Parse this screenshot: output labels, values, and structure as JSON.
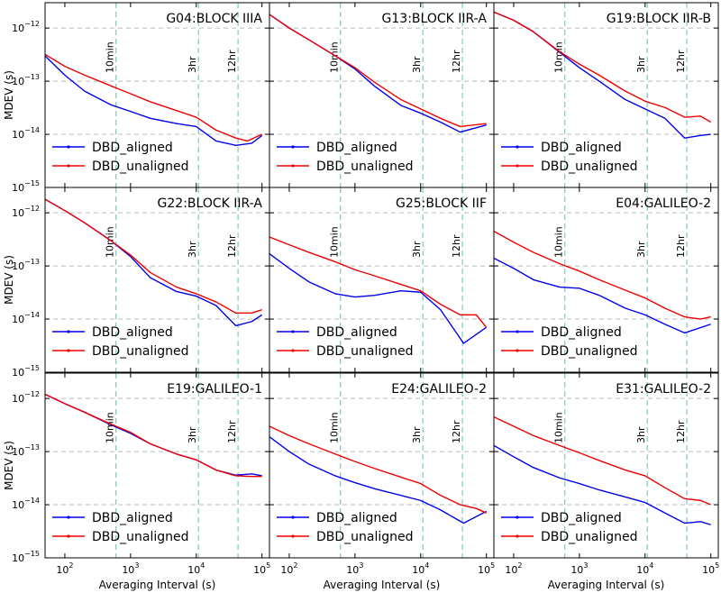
{
  "chart_data": {
    "type": "line",
    "xlabel": "Averaging Interval (s)",
    "ylabel": "MDEV (s)",
    "xscale": "log",
    "yscale": "log",
    "xlim": [
      50,
      130000
    ],
    "ylim": [
      1e-15,
      3e-12
    ],
    "x_ticks": [
      {
        "value": 100,
        "base": "10",
        "exp": "2"
      },
      {
        "value": 1000,
        "base": "10",
        "exp": "3"
      },
      {
        "value": 10000,
        "base": "10",
        "exp": "4"
      },
      {
        "value": 100000,
        "base": "10",
        "exp": "5"
      }
    ],
    "y_ticks": [
      {
        "value": 1e-15,
        "base": "10",
        "exp": "−15"
      },
      {
        "value": 1e-14,
        "base": "10",
        "exp": "−14"
      },
      {
        "value": 1e-13,
        "base": "10",
        "exp": "−13"
      },
      {
        "value": 1e-12,
        "base": "10",
        "exp": "−12"
      }
    ],
    "vlines": [
      {
        "x": 600,
        "label": "10min"
      },
      {
        "x": 10800,
        "label": "3hr"
      },
      {
        "x": 43200,
        "label": "12hr"
      }
    ],
    "grid": "horizontal dashed at decades",
    "legend_placement": "lower-left",
    "colors": {
      "aligned": "#0000ee",
      "unaligned": "#ee0000",
      "vline": "#7fc8c0",
      "grid": "#bbbbbb"
    },
    "panels": [
      {
        "title": "G04:BLOCK IIIA",
        "series": [
          {
            "name": "DBD_aligned",
            "color": "#0000ee",
            "x": [
              50,
              100,
              200,
              500,
              1000,
              2000,
              5000,
              10000,
              20000,
              40000,
              70000,
              100000
            ],
            "y": [
              3e-13,
              1.3e-13,
              6.5e-14,
              3.6e-14,
              2.7e-14,
              2e-14,
              1.6e-14,
              1.4e-14,
              7.5e-15,
              6.2e-15,
              6.8e-15,
              9.5e-15
            ]
          },
          {
            "name": "DBD_unaligned",
            "color": "#ee0000",
            "x": [
              50,
              100,
              200,
              500,
              1000,
              2000,
              5000,
              10000,
              20000,
              40000,
              60000,
              100000
            ],
            "y": [
              3.2e-13,
              1.9e-13,
              1.3e-13,
              8.2e-14,
              5.8e-14,
              4.1e-14,
              2.8e-14,
              2.1e-14,
              1.2e-14,
              8.5e-15,
              7.5e-15,
              1e-14
            ]
          }
        ]
      },
      {
        "title": "G13:BLOCK IIR-A",
        "series": [
          {
            "name": "DBD_aligned",
            "color": "#0000ee",
            "x": [
              50,
              100,
              200,
              500,
              1000,
              2000,
              5000,
              10000,
              20000,
              40000,
              100000
            ],
            "y": [
              1.8e-12,
              1e-12,
              6e-13,
              3e-13,
              1.7e-13,
              8e-14,
              3.5e-14,
              2.5e-14,
              1.7e-14,
              1.1e-14,
              1.5e-14
            ]
          },
          {
            "name": "DBD_unaligned",
            "color": "#ee0000",
            "x": [
              50,
              100,
              200,
              500,
              1000,
              2000,
              5000,
              10000,
              20000,
              40000,
              100000
            ],
            "y": [
              1.8e-12,
              1e-12,
              6e-13,
              3e-13,
              1.8e-13,
              9.5e-14,
              4.5e-14,
              3e-14,
              2e-14,
              1.4e-14,
              1.6e-14
            ]
          }
        ]
      },
      {
        "title": "G19:BLOCK IIR-B",
        "series": [
          {
            "name": "DBD_aligned",
            "color": "#0000ee",
            "x": [
              50,
              100,
              200,
              500,
              1000,
              2000,
              5000,
              10000,
              20000,
              40000,
              70000,
              100000
            ],
            "y": [
              2e-12,
              1.4e-12,
              8.5e-13,
              3.5e-13,
              1.8e-13,
              1e-13,
              4.5e-14,
              3e-14,
              2e-14,
              8.5e-15,
              9.5e-15,
              1e-14
            ]
          },
          {
            "name": "DBD_unaligned",
            "color": "#ee0000",
            "x": [
              50,
              100,
              200,
              500,
              1000,
              2000,
              5000,
              10000,
              20000,
              40000,
              70000,
              100000
            ],
            "y": [
              2e-12,
              1.4e-12,
              8.5e-13,
              3.6e-13,
              2.1e-13,
              1.3e-13,
              6.5e-14,
              4.2e-14,
              3.2e-14,
              2.1e-14,
              2.2e-14,
              1.7e-14
            ]
          }
        ]
      },
      {
        "title": "G22:BLOCK IIR-A",
        "series": [
          {
            "name": "DBD_aligned",
            "color": "#0000ee",
            "x": [
              50,
              100,
              200,
              500,
              1000,
              2000,
              5000,
              10000,
              20000,
              40000,
              70000,
              100000
            ],
            "y": [
              1.8e-12,
              1.1e-12,
              6.5e-13,
              3e-13,
              1.5e-13,
              6e-14,
              3.3e-14,
              2.7e-14,
              1.8e-14,
              7.5e-15,
              9e-15,
              1.2e-14
            ]
          },
          {
            "name": "DBD_unaligned",
            "color": "#ee0000",
            "x": [
              50,
              100,
              200,
              500,
              1000,
              2000,
              5000,
              10000,
              20000,
              40000,
              70000,
              100000
            ],
            "y": [
              1.8e-12,
              1.1e-12,
              6.5e-13,
              3e-13,
              1.6e-13,
              7.5e-14,
              4e-14,
              3e-14,
              2.1e-14,
              1.3e-14,
              1.3e-14,
              1.5e-14
            ]
          }
        ]
      },
      {
        "title": "G25:BLOCK IIF",
        "series": [
          {
            "name": "DBD_aligned",
            "color": "#0000ee",
            "x": [
              50,
              100,
              200,
              500,
              1000,
              2000,
              5000,
              10000,
              20000,
              45000,
              100000
            ],
            "y": [
              1.7e-13,
              9e-14,
              5e-14,
              3e-14,
              2.6e-14,
              2.8e-14,
              3.4e-14,
              3.2e-14,
              1.5e-14,
              3.5e-15,
              7e-15
            ]
          },
          {
            "name": "DBD_unaligned",
            "color": "#ee0000",
            "x": [
              50,
              100,
              200,
              500,
              1000,
              2000,
              5000,
              10000,
              20000,
              40000,
              70000,
              100000
            ],
            "y": [
              3.5e-13,
              2.5e-13,
              1.8e-13,
              1.2e-13,
              8.5e-14,
              6.5e-14,
              4.5e-14,
              3.4e-14,
              1.9e-14,
              1.2e-14,
              1.2e-14,
              7e-15
            ]
          }
        ]
      },
      {
        "title": "E04:GALILEO-2",
        "series": [
          {
            "name": "DBD_aligned",
            "color": "#0000ee",
            "x": [
              50,
              100,
              200,
              500,
              1000,
              2000,
              5000,
              10000,
              20000,
              40000,
              100000
            ],
            "y": [
              1.4e-13,
              9e-14,
              5.5e-14,
              4e-14,
              3.8e-14,
              2.8e-14,
              1.6e-14,
              1.2e-14,
              8e-15,
              5.5e-15,
              8e-15
            ]
          },
          {
            "name": "DBD_unaligned",
            "color": "#ee0000",
            "x": [
              50,
              100,
              200,
              500,
              1000,
              2000,
              5000,
              10000,
              20000,
              40000,
              70000,
              100000
            ],
            "y": [
              4.5e-13,
              2.8e-13,
              1.8e-13,
              1.1e-13,
              8e-14,
              5.5e-14,
              3.5e-14,
              2.5e-14,
              1.6e-14,
              1.1e-14,
              1e-14,
              1.1e-14
            ]
          }
        ]
      },
      {
        "title": "E19:GALILEO-1",
        "series": [
          {
            "name": "DBD_aligned",
            "color": "#0000ee",
            "x": [
              50,
              100,
              200,
              500,
              1000,
              2000,
              5000,
              10000,
              20000,
              40000,
              70000,
              100000
            ],
            "y": [
              1.2e-12,
              8e-13,
              5.5e-13,
              3.2e-13,
              2.2e-13,
              1.4e-13,
              9e-14,
              7e-14,
              4.5e-14,
              3.6e-14,
              3.8e-14,
              3.5e-14
            ]
          },
          {
            "name": "DBD_unaligned",
            "color": "#ee0000",
            "x": [
              50,
              100,
              200,
              500,
              1000,
              2000,
              5000,
              10000,
              20000,
              40000,
              70000,
              100000
            ],
            "y": [
              1.2e-12,
              8e-13,
              5.5e-13,
              3.3e-13,
              2.3e-13,
              1.4e-13,
              9e-14,
              7e-14,
              4.5e-14,
              3.5e-14,
              3.4e-14,
              3.4e-14
            ]
          }
        ]
      },
      {
        "title": "E24:GALILEO-2",
        "series": [
          {
            "name": "DBD_aligned",
            "color": "#0000ee",
            "x": [
              50,
              100,
              200,
              500,
              1000,
              2000,
              5000,
              10000,
              20000,
              45000,
              100000
            ],
            "y": [
              1.9e-13,
              1e-13,
              5.8e-14,
              3.5e-14,
              2.6e-14,
              2e-14,
              1.5e-14,
              1.2e-14,
              8e-15,
              4.5e-15,
              7.5e-15
            ]
          },
          {
            "name": "DBD_unaligned",
            "color": "#ee0000",
            "x": [
              50,
              100,
              200,
              500,
              1000,
              2000,
              5000,
              10000,
              20000,
              40000,
              70000,
              100000
            ],
            "y": [
              3e-13,
              2e-13,
              1.4e-13,
              9e-14,
              6.5e-14,
              4.8e-14,
              3.3e-14,
              2.5e-14,
              1.5e-14,
              1e-14,
              8.5e-15,
              7e-15
            ]
          }
        ]
      },
      {
        "title": "E31:GALILEO-2",
        "series": [
          {
            "name": "DBD_aligned",
            "color": "#0000ee",
            "x": [
              50,
              100,
              200,
              500,
              1000,
              2000,
              5000,
              10000,
              20000,
              40000,
              70000,
              100000
            ],
            "y": [
              1.3e-13,
              8e-14,
              5e-14,
              3.2e-14,
              2.5e-14,
              1.9e-14,
              1.4e-14,
              1.1e-14,
              7e-15,
              4.5e-15,
              4.8e-15,
              4.2e-15
            ]
          },
          {
            "name": "DBD_unaligned",
            "color": "#ee0000",
            "x": [
              50,
              100,
              200,
              500,
              1000,
              2000,
              5000,
              10000,
              20000,
              40000,
              70000,
              100000
            ],
            "y": [
              4.5e-13,
              3e-13,
              2e-13,
              1.3e-13,
              9.5e-14,
              6.8e-14,
              4.5e-14,
              3.5e-14,
              2.1e-14,
              1.3e-14,
              1.2e-14,
              1e-14
            ]
          }
        ]
      }
    ]
  }
}
